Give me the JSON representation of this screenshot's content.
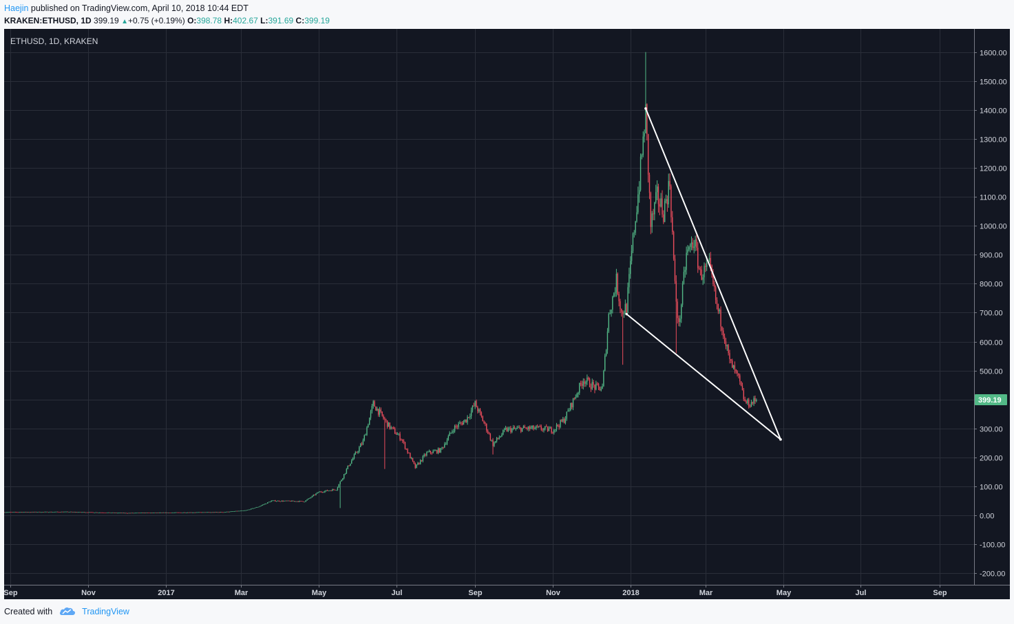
{
  "header": {
    "author": "Haejin",
    "published_text": "published on TradingView.com, April 10, 2018 10:44 EDT"
  },
  "quote": {
    "symbol": "KRAKEN:ETHUSD, 1D",
    "last": "399.19",
    "change": "+0.75 (+0.19%)",
    "open_label": "O:",
    "open": "398.78",
    "high_label": "H:",
    "high": "402.67",
    "low_label": "L:",
    "low": "391.69",
    "close_label": "C:",
    "close": "399.19"
  },
  "footer": {
    "created_with": "Created with",
    "brand": "TradingView"
  },
  "colors": {
    "background": "#131722",
    "grid": "#2a2e39",
    "axis_text": "#d1d4dc",
    "up": "#53b987",
    "down": "#eb4d5c",
    "trendline": "#ffffff",
    "price_tag": "#53b987"
  },
  "chart_data": {
    "type": "candlestick",
    "title": "ETHUSD, 1D, KRAKEN",
    "ylim": [
      -240,
      1680
    ],
    "y_ticks": [
      1600,
      1500,
      1400,
      1300,
      1200,
      1100,
      1000,
      900,
      800,
      700,
      600,
      500,
      400,
      300,
      200,
      100,
      0,
      -100,
      -200
    ],
    "y_tick_labels": [
      "1600.00",
      "1500.00",
      "1400.00",
      "1300.00",
      "1200.00",
      "1100.00",
      "1000.00",
      "900.00",
      "800.00",
      "700.00",
      "600.00",
      "500.00",
      "400.00",
      "300.00",
      "200.00",
      "100.00",
      "0.00",
      "-100.00",
      "-200.00"
    ],
    "x_range": [
      "2016-08-27",
      "2018-09-28"
    ],
    "x_ticks": [
      {
        "label": "Sep",
        "date": "2016-09-01"
      },
      {
        "label": "Nov",
        "date": "2016-11-01"
      },
      {
        "label": "2017",
        "date": "2017-01-01"
      },
      {
        "label": "Mar",
        "date": "2017-03-01"
      },
      {
        "label": "May",
        "date": "2017-05-01"
      },
      {
        "label": "Jul",
        "date": "2017-07-01"
      },
      {
        "label": "Sep",
        "date": "2017-09-01"
      },
      {
        "label": "Nov",
        "date": "2017-11-01"
      },
      {
        "label": "2018",
        "date": "2018-01-01"
      },
      {
        "label": "Mar",
        "date": "2018-03-01"
      },
      {
        "label": "May",
        "date": "2018-05-01"
      },
      {
        "label": "Jul",
        "date": "2018-07-01"
      },
      {
        "label": "Sep",
        "date": "2018-09-01"
      }
    ],
    "close_path": [
      {
        "date": "2016-08-27",
        "price": 11
      },
      {
        "date": "2016-10-15",
        "price": 12
      },
      {
        "date": "2016-12-01",
        "price": 8
      },
      {
        "date": "2017-02-15",
        "price": 11
      },
      {
        "date": "2017-03-05",
        "price": 17
      },
      {
        "date": "2017-03-15",
        "price": 30
      },
      {
        "date": "2017-03-25",
        "price": 50
      },
      {
        "date": "2017-04-20",
        "price": 48
      },
      {
        "date": "2017-05-01",
        "price": 80
      },
      {
        "date": "2017-05-15",
        "price": 90
      },
      {
        "date": "2017-05-25",
        "price": 175
      },
      {
        "date": "2017-06-05",
        "price": 255
      },
      {
        "date": "2017-06-13",
        "price": 385
      },
      {
        "date": "2017-06-25",
        "price": 310
      },
      {
        "date": "2017-07-05",
        "price": 265
      },
      {
        "date": "2017-07-16",
        "price": 165
      },
      {
        "date": "2017-07-25",
        "price": 215
      },
      {
        "date": "2017-08-05",
        "price": 225
      },
      {
        "date": "2017-08-15",
        "price": 300
      },
      {
        "date": "2017-08-25",
        "price": 330
      },
      {
        "date": "2017-09-01",
        "price": 385
      },
      {
        "date": "2017-09-10",
        "price": 300
      },
      {
        "date": "2017-09-15",
        "price": 245
      },
      {
        "date": "2017-09-25",
        "price": 295
      },
      {
        "date": "2017-10-10",
        "price": 300
      },
      {
        "date": "2017-10-20",
        "price": 300
      },
      {
        "date": "2017-11-01",
        "price": 295
      },
      {
        "date": "2017-11-10",
        "price": 330
      },
      {
        "date": "2017-11-25",
        "price": 470
      },
      {
        "date": "2017-12-05",
        "price": 440
      },
      {
        "date": "2017-12-10",
        "price": 440
      },
      {
        "date": "2017-12-15",
        "price": 690
      },
      {
        "date": "2017-12-21",
        "price": 810
      },
      {
        "date": "2017-12-25",
        "price": 700
      },
      {
        "date": "2017-12-29",
        "price": 720
      },
      {
        "date": "2018-01-03",
        "price": 950
      },
      {
        "date": "2018-01-08",
        "price": 1150
      },
      {
        "date": "2018-01-13",
        "price": 1390
      },
      {
        "date": "2018-01-17",
        "price": 1000
      },
      {
        "date": "2018-01-22",
        "price": 1100
      },
      {
        "date": "2018-01-27",
        "price": 1050
      },
      {
        "date": "2018-02-01",
        "price": 1150
      },
      {
        "date": "2018-02-05",
        "price": 790
      },
      {
        "date": "2018-02-08",
        "price": 650
      },
      {
        "date": "2018-02-14",
        "price": 900
      },
      {
        "date": "2018-02-20",
        "price": 950
      },
      {
        "date": "2018-02-25",
        "price": 830
      },
      {
        "date": "2018-03-04",
        "price": 860
      },
      {
        "date": "2018-03-10",
        "price": 720
      },
      {
        "date": "2018-03-15",
        "price": 640
      },
      {
        "date": "2018-03-20",
        "price": 530
      },
      {
        "date": "2018-03-27",
        "price": 470
      },
      {
        "date": "2018-04-01",
        "price": 390
      },
      {
        "date": "2018-04-05",
        "price": 385
      },
      {
        "date": "2018-04-10",
        "price": 399
      }
    ],
    "trendlines": [
      {
        "from": {
          "date": "2018-01-13",
          "price": 1405
        },
        "to": {
          "date": "2018-04-29",
          "price": 262
        }
      },
      {
        "from": {
          "date": "2017-12-29",
          "price": 695
        },
        "to": {
          "date": "2018-04-29",
          "price": 262
        }
      }
    ],
    "last_price_label": "399.19",
    "last_price": 399.19
  }
}
